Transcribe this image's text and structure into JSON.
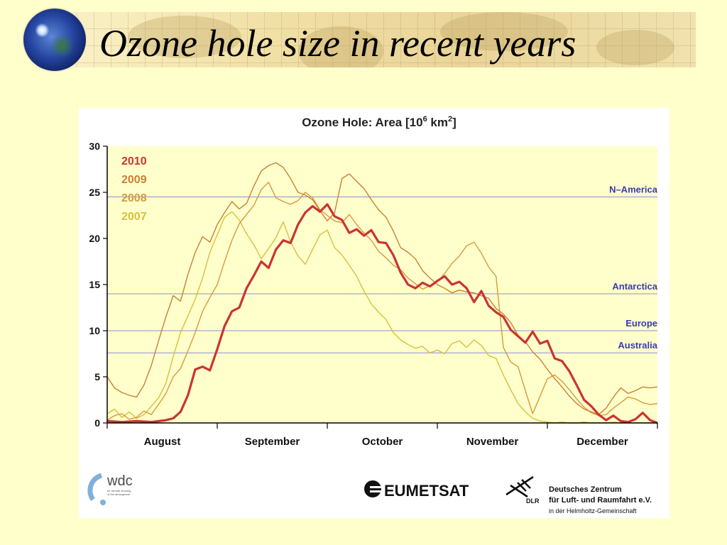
{
  "slide": {
    "title": "Ozone hole size in recent years"
  },
  "chart_data": {
    "type": "line",
    "title": "Ozone Hole: Area [10",
    "title_sup1": "6",
    "title_mid": " km",
    "title_sup2": "2",
    "title_end": "]",
    "xlabel": "",
    "ylabel": "",
    "x_tick_labels": [
      "August",
      "September",
      "October",
      "November",
      "December"
    ],
    "y_ticks": [
      0,
      5,
      10,
      15,
      20,
      25,
      30
    ],
    "xlim": [
      0,
      150
    ],
    "ylim": [
      0,
      30
    ],
    "grid": false,
    "legend_position": "top-left",
    "reference_lines": [
      {
        "label": "N–America",
        "value": 24.5
      },
      {
        "label": "Antarctica",
        "value": 14.0
      },
      {
        "label": "Europe",
        "value": 10.0
      },
      {
        "label": "Australia",
        "value": 7.6
      }
    ],
    "series": [
      {
        "name": "2010",
        "color": "#cc3333",
        "width": 3.2,
        "x": [
          0,
          4,
          8,
          12,
          16,
          18,
          20,
          22,
          24,
          26,
          28,
          30,
          32,
          34,
          36,
          38,
          40,
          42,
          44,
          46,
          48,
          50,
          52,
          54,
          56,
          58,
          60,
          62,
          64,
          66,
          68,
          70,
          72,
          74,
          76,
          78,
          80,
          82,
          84,
          86,
          88,
          90,
          92,
          94,
          96,
          98,
          100,
          102,
          104,
          106,
          108,
          110,
          112,
          114,
          116,
          118,
          120,
          122,
          124,
          126,
          128,
          130,
          132,
          134,
          136,
          138,
          140,
          142,
          144,
          146,
          148,
          150
        ],
        "y": [
          0.2,
          0.1,
          0.2,
          0.1,
          0.3,
          0.5,
          1.2,
          3.0,
          5.8,
          6.1,
          5.7,
          8.0,
          10.5,
          12.1,
          12.5,
          14.6,
          16.0,
          17.5,
          16.8,
          18.8,
          19.8,
          19.5,
          21.5,
          22.8,
          23.5,
          22.9,
          23.7,
          22.4,
          22.0,
          20.6,
          21.0,
          20.3,
          20.9,
          19.6,
          19.5,
          18.2,
          16.3,
          15.0,
          14.6,
          15.2,
          14.8,
          15.4,
          15.9,
          15.0,
          15.3,
          14.6,
          13.1,
          14.3,
          12.7,
          12.0,
          11.5,
          10.1,
          9.4,
          8.7,
          9.9,
          8.6,
          8.9,
          7.0,
          6.7,
          5.6,
          4.1,
          2.5,
          1.8,
          0.9,
          0.3,
          0.8,
          0.2,
          0.1,
          0.4,
          1.1,
          0.3,
          0.0
        ]
      },
      {
        "name": "2009",
        "color": "#c98034",
        "width": 1.4,
        "x": [
          0,
          2,
          4,
          6,
          8,
          10,
          12,
          14,
          16,
          18,
          20,
          22,
          24,
          26,
          28,
          30,
          32,
          34,
          36,
          38,
          40,
          42,
          44,
          46,
          48,
          50,
          52,
          54,
          56,
          58,
          60,
          62,
          64,
          66,
          68,
          70,
          72,
          74,
          76,
          78,
          80,
          82,
          84,
          86,
          88,
          90,
          92,
          94,
          96,
          98,
          100,
          102,
          104,
          106,
          108,
          110,
          112,
          114,
          116,
          118,
          120,
          122,
          124,
          126,
          128,
          130,
          132,
          134,
          136,
          138,
          140,
          142,
          144,
          146,
          148,
          150
        ],
        "y": [
          5.0,
          3.8,
          3.3,
          3.0,
          2.8,
          4.1,
          6.2,
          8.9,
          11.5,
          13.8,
          13.2,
          16.1,
          18.5,
          20.2,
          19.6,
          21.5,
          22.8,
          24.0,
          23.2,
          23.8,
          25.7,
          27.3,
          27.9,
          28.2,
          27.7,
          26.5,
          25.0,
          24.7,
          24.2,
          23.0,
          21.9,
          22.8,
          26.5,
          27.0,
          26.2,
          25.4,
          24.2,
          23.1,
          22.3,
          20.8,
          19.0,
          18.5,
          17.8,
          16.5,
          15.7,
          15.0,
          14.6,
          14.1,
          14.4,
          14.2,
          14.1,
          13.8,
          13.5,
          12.4,
          11.8,
          10.9,
          9.5,
          8.8,
          7.7,
          6.9,
          5.8,
          4.8,
          3.9,
          2.9,
          2.1,
          1.5,
          1.2,
          0.9,
          1.6,
          2.8,
          3.8,
          3.2,
          3.5,
          3.9,
          3.8,
          3.9
        ]
      },
      {
        "name": "2008",
        "color": "#d49a3f",
        "width": 1.4,
        "x": [
          0,
          2,
          4,
          6,
          8,
          10,
          12,
          14,
          16,
          18,
          20,
          22,
          24,
          26,
          28,
          30,
          32,
          34,
          36,
          38,
          40,
          42,
          44,
          46,
          48,
          50,
          52,
          54,
          56,
          58,
          60,
          62,
          64,
          66,
          68,
          70,
          72,
          74,
          76,
          78,
          80,
          82,
          84,
          86,
          88,
          90,
          92,
          94,
          96,
          98,
          100,
          102,
          104,
          106,
          108,
          110,
          112,
          114,
          116,
          118,
          120,
          122,
          124,
          126,
          128,
          130,
          132,
          134,
          136,
          138,
          140,
          142,
          144,
          146,
          148,
          150
        ],
        "y": [
          0.3,
          0.8,
          1.0,
          0.4,
          0.6,
          1.3,
          0.9,
          2.0,
          3.2,
          5.0,
          5.9,
          7.8,
          9.8,
          12.1,
          13.6,
          15.0,
          17.5,
          19.8,
          21.6,
          22.6,
          23.6,
          25.3,
          26.1,
          24.4,
          24.0,
          23.7,
          24.1,
          25.0,
          24.4,
          23.1,
          22.5,
          21.9,
          21.7,
          22.6,
          21.5,
          20.6,
          19.8,
          18.6,
          17.9,
          17.1,
          16.6,
          15.7,
          15.1,
          14.5,
          14.9,
          15.3,
          16.2,
          17.3,
          18.1,
          19.2,
          19.6,
          18.4,
          16.9,
          15.9,
          8.2,
          6.6,
          6.1,
          3.5,
          1.0,
          2.9,
          4.8,
          5.2,
          4.5,
          3.6,
          2.6,
          1.7,
          1.1,
          0.8,
          0.9,
          1.6,
          2.2,
          2.8,
          2.6,
          2.2,
          2.0,
          2.1
        ]
      },
      {
        "name": "2007",
        "color": "#d8c03a",
        "width": 1.4,
        "x": [
          0,
          2,
          4,
          6,
          8,
          10,
          12,
          14,
          16,
          18,
          20,
          22,
          24,
          26,
          28,
          30,
          32,
          34,
          36,
          38,
          40,
          42,
          44,
          46,
          48,
          50,
          52,
          54,
          56,
          58,
          60,
          62,
          64,
          66,
          68,
          70,
          72,
          74,
          76,
          78,
          80,
          82,
          84,
          86,
          88,
          90,
          92,
          94,
          96,
          98,
          100,
          102,
          104,
          106,
          108,
          110,
          112,
          114,
          116,
          118,
          120,
          122,
          124,
          126,
          128,
          130,
          132,
          134,
          136,
          138,
          140,
          142,
          144,
          146,
          148,
          150
        ],
        "y": [
          1.0,
          1.5,
          0.6,
          1.2,
          0.5,
          0.9,
          1.8,
          2.7,
          4.3,
          7.2,
          9.8,
          11.6,
          13.4,
          15.7,
          18.5,
          20.4,
          22.3,
          22.9,
          22.0,
          20.5,
          19.3,
          17.8,
          18.9,
          20.1,
          21.8,
          19.6,
          18.1,
          17.2,
          18.8,
          20.4,
          20.9,
          19.0,
          18.2,
          17.1,
          15.9,
          14.3,
          12.9,
          12.0,
          11.2,
          9.8,
          9.0,
          8.5,
          8.1,
          8.3,
          7.6,
          7.9,
          7.5,
          8.6,
          8.9,
          8.2,
          9.0,
          8.4,
          7.3,
          7.0,
          5.2,
          3.6,
          2.1,
          1.2,
          0.5,
          0.2,
          0.1,
          0.0,
          0.1,
          0.0,
          0.0,
          0.1,
          0.0,
          0.0,
          0.0,
          0.1,
          0.0,
          0.0,
          0.0,
          0.0,
          0.0,
          0.0
        ]
      }
    ]
  },
  "logos": {
    "wdc_text": "wdc",
    "wdc_sub1": "for remote sensing",
    "wdc_sub2": "of the atmosphere",
    "eumetsat": "EUMETSAT",
    "dlr_mark": "DLR",
    "dlr_line1": "Deutsches Zentrum",
    "dlr_line2": "für Luft- und Raumfahrt e.V.",
    "dlr_line3": "in der Helmholtz-Gemeinschaft"
  }
}
